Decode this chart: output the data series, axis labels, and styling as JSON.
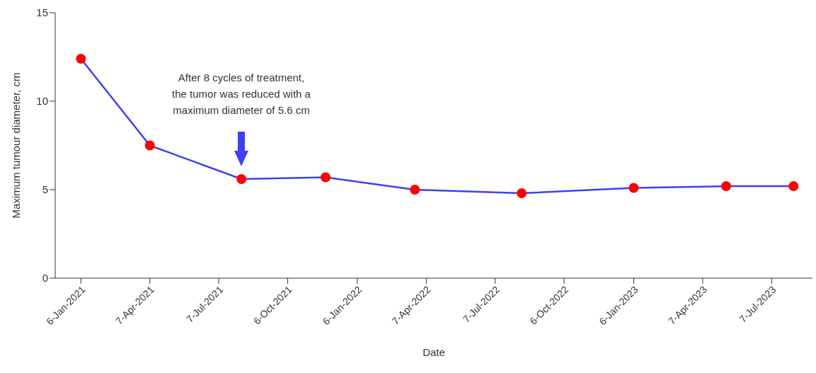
{
  "chart_data": {
    "type": "line",
    "xlabel": "Date",
    "ylabel": "Maximum tumour diameter, cm",
    "x": [
      "2021-01-06",
      "2021-04-07",
      "2021-08-06",
      "2021-11-25",
      "2022-03-23",
      "2022-08-11",
      "2023-01-06",
      "2023-05-08",
      "2023-08-05"
    ],
    "series": [
      {
        "color": "#3f3ff5",
        "colors": [
          "#ff0000",
          "#ff0000",
          "#ff0000",
          "#ff0000",
          "#ff0000",
          "#ff0000",
          "#ff0000",
          "#ff0000",
          "#ff0000"
        ],
        "values": [
          12.4,
          7.5,
          5.6,
          5.7,
          5.0,
          4.8,
          5.1,
          5.2,
          5.2
        ]
      }
    ],
    "marker": "circle",
    "grid": false,
    "legend": false,
    "xlim": [
      "2020-12-03",
      "2023-08-30"
    ],
    "xticks": [
      {
        "value": "2021-01-06",
        "label": "6-Jan-2021"
      },
      {
        "value": "2021-04-07",
        "label": "7-Apr-2021"
      },
      {
        "value": "2021-07-07",
        "label": "7-Jul-2021"
      },
      {
        "value": "2021-10-06",
        "label": "6-Oct-2021"
      },
      {
        "value": "2022-01-06",
        "label": "6-Jan-2022"
      },
      {
        "value": "2022-04-07",
        "label": "7-Apr-2022"
      },
      {
        "value": "2022-07-07",
        "label": "7-Jul-2022"
      },
      {
        "value": "2022-10-06",
        "label": "6-Oct-2022"
      },
      {
        "value": "2023-01-06",
        "label": "6-Jan-2023"
      },
      {
        "value": "2023-04-07",
        "label": "7-Apr-2023"
      },
      {
        "value": "2023-07-07",
        "label": "7-Jul-2023"
      }
    ],
    "ylim": [
      0,
      15
    ],
    "yticks": [
      0,
      5,
      10,
      15
    ],
    "annotations": [
      "After 8 cycles of treatment,\nthe tumor was reduced with a\nmaximum diameter of 5.6 cm"
    ]
  }
}
